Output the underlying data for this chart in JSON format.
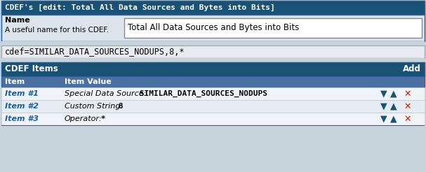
{
  "title_bar_text": "CDEF's [edit: Total All Data Sources and Bytes into Bits]",
  "title_bar_color": "#1a5276",
  "title_bar_text_color": "#ffffff",
  "name_input": "Total All Data Sources and Bytes into Bits",
  "cdef_formula": "cdef=SIMILAR_DATA_SOURCES_NODUPS,8,*",
  "cdef_items_header": "CDEF Items",
  "add_label": "Add",
  "col_header_item": "Item",
  "col_header_value": "Item Value",
  "row_label_color": "#1a5fa8",
  "header2_bg": "#4a6fa0",
  "items": [
    {
      "label": "Item #1",
      "italic": "Special Data Source:",
      "bold": " SIMILAR_DATA_SOURCES_NODUPS"
    },
    {
      "label": "Item #2",
      "italic": "Custom String:",
      "bold": " 8"
    },
    {
      "label": "Item #3",
      "italic": "Operator:",
      "bold": " *"
    }
  ],
  "row_colors": [
    "#f0f4f8",
    "#e4ecf4"
  ],
  "title_bar_color2": "#1a5276",
  "border_color": "#1a5fa8",
  "outer_bg": "#c8d4dc",
  "panel_bg": "#dce4ec",
  "input_box_bg": "#ffffff",
  "formula_bg": "#e8ecf0",
  "arrow_color": "#1a5276",
  "x_color": "#cc2200",
  "fig_w": 6.07,
  "fig_h": 2.46,
  "dpi": 100
}
